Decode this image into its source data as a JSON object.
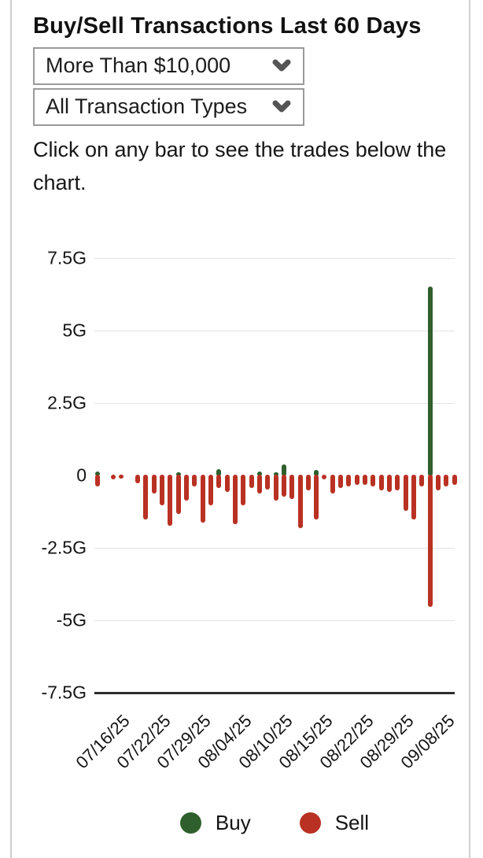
{
  "header": {
    "title": "Buy/Sell Transactions Last 60 Days"
  },
  "filters": {
    "amount": {
      "value": "More Than $10,000"
    },
    "type": {
      "value": "All Transaction Types"
    }
  },
  "help_text": "Click on any bar to see the trades below the chart.",
  "colors": {
    "buy": "#2e5f2c",
    "sell": "#b93122",
    "gridline": "#e3e3e3",
    "axis": "#2e2e2e"
  },
  "legend": [
    {
      "label": "Buy",
      "color": "#2e5f2c"
    },
    {
      "label": "Sell",
      "color": "#b93122"
    }
  ],
  "chart_data": {
    "type": "bar",
    "title": "Buy/Sell Transactions Last 60 Days",
    "unit": "G",
    "ylim": [
      -7.5,
      7.5
    ],
    "yticks": [
      7.5,
      5,
      2.5,
      0,
      -2.5,
      -5,
      -7.5
    ],
    "ytick_labels": [
      "7.5G",
      "5G",
      "2.5G",
      "0",
      "-2.5G",
      "-5G",
      "-7.5G"
    ],
    "grid": true,
    "legend_position": "bottom",
    "x_tick_indices": [
      2,
      7,
      12,
      17,
      22,
      27,
      32,
      37,
      42
    ],
    "x_tick_labels": [
      "07/16/25",
      "07/22/25",
      "07/29/25",
      "08/04/25",
      "08/10/25",
      "08/15/25",
      "08/22/25",
      "08/29/25",
      "09/08/25"
    ],
    "series": [
      {
        "name": "Buy",
        "color": "#2e5f2c",
        "values": [
          0.1,
          0,
          0,
          0,
          0,
          0,
          0,
          0,
          0,
          0,
          0.06,
          0,
          0,
          0,
          0,
          0.2,
          0,
          0,
          0,
          0,
          0.1,
          0,
          0.07,
          0.34,
          0,
          0,
          0,
          0.15,
          0,
          0,
          0,
          0,
          0,
          0,
          0,
          0,
          0,
          0,
          0,
          0,
          0,
          6.5,
          0,
          0,
          0
        ]
      },
      {
        "name": "Sell",
        "color": "#b93122",
        "values": [
          -0.35,
          0,
          -0.1,
          -0.05,
          0,
          -0.25,
          -1.5,
          -0.6,
          -1.0,
          -1.7,
          -1.3,
          -0.85,
          -0.35,
          -1.6,
          -1.0,
          -0.4,
          -0.55,
          -1.65,
          -1.0,
          -0.4,
          -0.6,
          -0.45,
          -0.85,
          -0.7,
          -0.8,
          -1.8,
          -0.5,
          -1.5,
          -0.1,
          -0.6,
          -0.4,
          -0.35,
          -0.3,
          -0.3,
          -0.35,
          -0.5,
          -0.55,
          -0.5,
          -1.2,
          -1.5,
          -0.35,
          -4.5,
          -0.5,
          -0.35,
          -0.3
        ]
      }
    ]
  }
}
